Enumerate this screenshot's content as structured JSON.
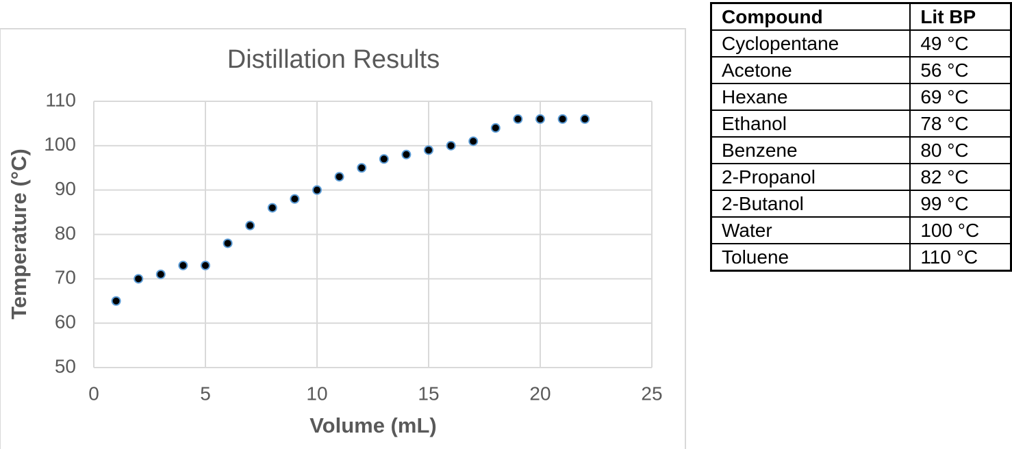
{
  "chart_data": {
    "type": "scatter",
    "title": "Distillation Results",
    "x_label": "Volume (mL)",
    "y_label": "Temperature (°C)",
    "x": [
      1,
      2,
      3,
      4,
      5,
      6,
      7,
      8,
      9,
      10,
      11,
      12,
      13,
      14,
      15,
      16,
      17,
      18,
      19,
      20,
      21,
      22
    ],
    "values": [
      65,
      70,
      71,
      73,
      73,
      78,
      82,
      86,
      88,
      90,
      93,
      95,
      97,
      98,
      99,
      100,
      101,
      104,
      106,
      106,
      106,
      106
    ],
    "color": "#000000",
    "edge_color": "#5b9bd5",
    "xlim": [
      0,
      25
    ],
    "xticks": [
      0,
      5,
      10,
      15,
      20,
      25
    ],
    "ylim": [
      50,
      110
    ],
    "yticks": [
      50,
      60,
      70,
      80,
      90,
      100,
      110
    ],
    "grid": true
  },
  "table": {
    "columns": [
      "Compound",
      "Lit BP"
    ],
    "rows": [
      [
        "Cyclopentane",
        "49 °C"
      ],
      [
        "Acetone",
        "56 °C"
      ],
      [
        "Hexane",
        "69 °C"
      ],
      [
        "Ethanol",
        "78 °C"
      ],
      [
        "Benzene",
        "80 °C"
      ],
      [
        "2-Propanol",
        "82 °C"
      ],
      [
        "2-Butanol",
        "99 °C"
      ],
      [
        "Water",
        "100 °C"
      ],
      [
        "Toluene",
        "110 °C"
      ]
    ]
  }
}
